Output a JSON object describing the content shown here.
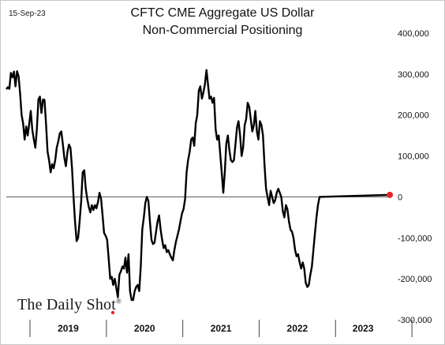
{
  "date_label": "15-Sep-23",
  "brand": "The Daily Shot",
  "brand_mark": "®",
  "colors": {
    "line": "#000000",
    "zero_line": "#555555",
    "marker": "#e8252a",
    "brand_dot": "#e8252a"
  },
  "chart_data": {
    "type": "line",
    "title": "CFTC CME Aggregate US Dollar",
    "subtitle": "Non-Commercial Positioning",
    "xlabel": "",
    "ylabel": "",
    "ylim": [
      -300000,
      400000
    ],
    "y_ticks": [
      400000,
      300000,
      200000,
      100000,
      0,
      -100000,
      -200000,
      -300000
    ],
    "y_tick_labels": [
      "400,000",
      "300,000",
      "200,000",
      "100,000",
      "0",
      "-100,000",
      "-200,000",
      "-300,000"
    ],
    "x_range": [
      2018.69,
      2023.72
    ],
    "x_year_labels": [
      "2019",
      "2020",
      "2021",
      "2022",
      "2023"
    ],
    "x_year_boundaries": [
      2019,
      2020,
      2021,
      2022,
      2023
    ],
    "last_point_marker": {
      "x": 2023.71,
      "y": 5000
    },
    "series": [
      {
        "values": [
          [
            2018.69,
            263000
          ],
          [
            2018.71,
            268000
          ],
          [
            2018.73,
            264000
          ],
          [
            2018.75,
            303000
          ],
          [
            2018.77,
            292000
          ],
          [
            2018.79,
            306000
          ],
          [
            2018.81,
            270000
          ],
          [
            2018.83,
            307000
          ],
          [
            2018.85,
            295000
          ],
          [
            2018.87,
            255000
          ],
          [
            2018.89,
            200000
          ],
          [
            2018.91,
            180000
          ],
          [
            2018.93,
            140000
          ],
          [
            2018.95,
            172000
          ],
          [
            2018.97,
            150000
          ],
          [
            2018.99,
            178000
          ],
          [
            2019.01,
            210000
          ],
          [
            2019.03,
            165000
          ],
          [
            2019.05,
            140000
          ],
          [
            2019.07,
            120000
          ],
          [
            2019.09,
            165000
          ],
          [
            2019.11,
            238000
          ],
          [
            2019.13,
            245000
          ],
          [
            2019.15,
            205000
          ],
          [
            2019.17,
            238000
          ],
          [
            2019.19,
            237000
          ],
          [
            2019.21,
            180000
          ],
          [
            2019.23,
            110000
          ],
          [
            2019.25,
            90000
          ],
          [
            2019.27,
            60000
          ],
          [
            2019.29,
            80000
          ],
          [
            2019.31,
            70000
          ],
          [
            2019.33,
            90000
          ],
          [
            2019.35,
            120000
          ],
          [
            2019.37,
            135000
          ],
          [
            2019.39,
            155000
          ],
          [
            2019.41,
            160000
          ],
          [
            2019.43,
            130000
          ],
          [
            2019.45,
            95000
          ],
          [
            2019.47,
            75000
          ],
          [
            2019.49,
            110000
          ],
          [
            2019.51,
            128000
          ],
          [
            2019.53,
            120000
          ],
          [
            2019.55,
            70000
          ],
          [
            2019.57,
            0
          ],
          [
            2019.59,
            -60000
          ],
          [
            2019.61,
            -108000
          ],
          [
            2019.63,
            -100000
          ],
          [
            2019.65,
            -60000
          ],
          [
            2019.67,
            -10000
          ],
          [
            2019.69,
            60000
          ],
          [
            2019.71,
            65000
          ],
          [
            2019.73,
            20000
          ],
          [
            2019.75,
            -5000
          ],
          [
            2019.77,
            -25000
          ],
          [
            2019.79,
            -38000
          ],
          [
            2019.81,
            -20000
          ],
          [
            2019.83,
            -32000
          ],
          [
            2019.85,
            -20000
          ],
          [
            2019.87,
            -28000
          ],
          [
            2019.89,
            -12000
          ],
          [
            2019.91,
            10000
          ],
          [
            2019.93,
            -5000
          ],
          [
            2019.95,
            -45000
          ],
          [
            2019.97,
            -88000
          ],
          [
            2019.99,
            -95000
          ],
          [
            2020.01,
            -105000
          ],
          [
            2020.03,
            -150000
          ],
          [
            2020.05,
            -200000
          ],
          [
            2020.07,
            -195000
          ],
          [
            2020.09,
            -215000
          ],
          [
            2020.11,
            -200000
          ],
          [
            2020.13,
            -222000
          ],
          [
            2020.15,
            -245000
          ],
          [
            2020.17,
            -190000
          ],
          [
            2020.19,
            -182000
          ],
          [
            2020.21,
            -170000
          ],
          [
            2020.23,
            -175000
          ],
          [
            2020.25,
            -148000
          ],
          [
            2020.27,
            -185000
          ],
          [
            2020.29,
            -140000
          ],
          [
            2020.31,
            -230000
          ],
          [
            2020.33,
            -252000
          ],
          [
            2020.35,
            -252000
          ],
          [
            2020.37,
            -230000
          ],
          [
            2020.39,
            -220000
          ],
          [
            2020.41,
            -215000
          ],
          [
            2020.43,
            -230000
          ],
          [
            2020.45,
            -170000
          ],
          [
            2020.47,
            -80000
          ],
          [
            2020.49,
            -50000
          ],
          [
            2020.51,
            -15000
          ],
          [
            2020.53,
            0
          ],
          [
            2020.55,
            -10000
          ],
          [
            2020.57,
            -60000
          ],
          [
            2020.59,
            -105000
          ],
          [
            2020.61,
            -115000
          ],
          [
            2020.63,
            -112000
          ],
          [
            2020.65,
            -85000
          ],
          [
            2020.67,
            -60000
          ],
          [
            2020.69,
            -45000
          ],
          [
            2020.71,
            -80000
          ],
          [
            2020.73,
            -105000
          ],
          [
            2020.75,
            -125000
          ],
          [
            2020.77,
            -118000
          ],
          [
            2020.79,
            -135000
          ],
          [
            2020.81,
            -130000
          ],
          [
            2020.83,
            -140000
          ],
          [
            2020.85,
            -148000
          ],
          [
            2020.87,
            -155000
          ],
          [
            2020.89,
            -130000
          ],
          [
            2020.91,
            -110000
          ],
          [
            2020.93,
            -95000
          ],
          [
            2020.95,
            -80000
          ],
          [
            2020.97,
            -60000
          ],
          [
            2020.99,
            -40000
          ],
          [
            2021.01,
            -30000
          ],
          [
            2021.03,
            -5000
          ],
          [
            2021.05,
            60000
          ],
          [
            2021.07,
            90000
          ],
          [
            2021.09,
            110000
          ],
          [
            2021.11,
            140000
          ],
          [
            2021.13,
            145000
          ],
          [
            2021.15,
            125000
          ],
          [
            2021.17,
            180000
          ],
          [
            2021.19,
            200000
          ],
          [
            2021.21,
            260000
          ],
          [
            2021.23,
            270000
          ],
          [
            2021.25,
            240000
          ],
          [
            2021.27,
            255000
          ],
          [
            2021.29,
            275000
          ],
          [
            2021.31,
            310000
          ],
          [
            2021.33,
            275000
          ],
          [
            2021.35,
            240000
          ],
          [
            2021.37,
            245000
          ],
          [
            2021.39,
            230000
          ],
          [
            2021.41,
            242000
          ],
          [
            2021.43,
            165000
          ],
          [
            2021.45,
            140000
          ],
          [
            2021.47,
            150000
          ],
          [
            2021.49,
            105000
          ],
          [
            2021.51,
            60000
          ],
          [
            2021.53,
            10000
          ],
          [
            2021.55,
            60000
          ],
          [
            2021.57,
            130000
          ],
          [
            2021.59,
            150000
          ],
          [
            2021.61,
            115000
          ],
          [
            2021.63,
            90000
          ],
          [
            2021.65,
            85000
          ],
          [
            2021.67,
            90000
          ],
          [
            2021.69,
            130000
          ],
          [
            2021.71,
            170000
          ],
          [
            2021.73,
            185000
          ],
          [
            2021.75,
            150000
          ],
          [
            2021.77,
            100000
          ],
          [
            2021.79,
            120000
          ],
          [
            2021.81,
            175000
          ],
          [
            2021.83,
            190000
          ],
          [
            2021.85,
            230000
          ],
          [
            2021.87,
            220000
          ],
          [
            2021.89,
            190000
          ],
          [
            2021.91,
            160000
          ],
          [
            2021.93,
            175000
          ],
          [
            2021.95,
            210000
          ],
          [
            2021.97,
            160000
          ],
          [
            2021.99,
            140000
          ],
          [
            2022.01,
            185000
          ],
          [
            2022.03,
            175000
          ],
          [
            2022.05,
            150000
          ],
          [
            2022.07,
            80000
          ],
          [
            2022.09,
            20000
          ],
          [
            2022.11,
            0
          ],
          [
            2022.13,
            -20000
          ],
          [
            2022.15,
            15000
          ],
          [
            2022.17,
            0
          ],
          [
            2022.19,
            -15000
          ],
          [
            2022.21,
            -8000
          ],
          [
            2022.23,
            10000
          ],
          [
            2022.25,
            20000
          ],
          [
            2022.27,
            10000
          ],
          [
            2022.29,
            0
          ],
          [
            2022.31,
            -35000
          ],
          [
            2022.33,
            -50000
          ],
          [
            2022.35,
            -20000
          ],
          [
            2022.37,
            -30000
          ],
          [
            2022.39,
            -60000
          ],
          [
            2022.41,
            -80000
          ],
          [
            2022.43,
            -85000
          ],
          [
            2022.45,
            -100000
          ],
          [
            2022.47,
            -130000
          ],
          [
            2022.49,
            -145000
          ],
          [
            2022.51,
            -140000
          ],
          [
            2022.53,
            -160000
          ],
          [
            2022.55,
            -175000
          ],
          [
            2022.57,
            -160000
          ],
          [
            2022.59,
            -175000
          ],
          [
            2022.61,
            -210000
          ],
          [
            2022.63,
            -220000
          ],
          [
            2022.65,
            -215000
          ],
          [
            2022.67,
            -190000
          ],
          [
            2022.69,
            -170000
          ],
          [
            2022.71,
            -130000
          ],
          [
            2022.73,
            -90000
          ],
          [
            2022.75,
            -50000
          ],
          [
            2022.77,
            -20000
          ],
          [
            2022.79,
            0
          ],
          [
            2023.71,
            5000
          ]
        ]
      }
    ]
  }
}
